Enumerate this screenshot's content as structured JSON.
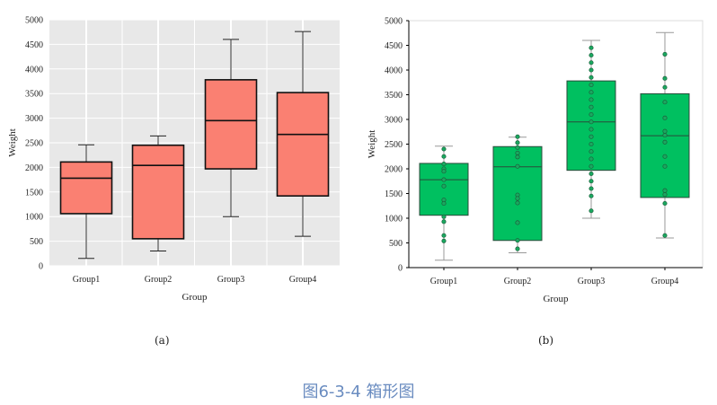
{
  "chart_data": [
    {
      "type": "box",
      "title": "",
      "xlabel": "Group",
      "ylabel": "Weight",
      "ylim": [
        0,
        5000
      ],
      "yticks": [
        0,
        500,
        1000,
        1500,
        2000,
        2500,
        3000,
        3500,
        4000,
        4500,
        5000
      ],
      "categories": [
        "Group1",
        "Group2",
        "Group3",
        "Group4"
      ],
      "boxes": [
        {
          "min": 150,
          "q1": 1060,
          "median": 1780,
          "q3": 2110,
          "max": 2460
        },
        {
          "min": 300,
          "q1": 550,
          "median": 2040,
          "q3": 2450,
          "max": 2640
        },
        {
          "min": 1000,
          "q1": 1970,
          "median": 2950,
          "q3": 3780,
          "max": 4600
        },
        {
          "min": 600,
          "q1": 1420,
          "median": 2670,
          "q3": 3520,
          "max": 4760
        }
      ],
      "grid": true,
      "fill": "#fa8072",
      "background": "#e8e8e8",
      "label": "(a)"
    },
    {
      "type": "box",
      "title": "",
      "xlabel": "Group",
      "ylabel": "Weight",
      "ylim": [
        0,
        5000
      ],
      "yticks": [
        0,
        500,
        1000,
        1500,
        2000,
        2500,
        3000,
        3500,
        4000,
        4500,
        5000
      ],
      "categories": [
        "Group1",
        "Group2",
        "Group3",
        "Group4"
      ],
      "boxes": [
        {
          "min": 150,
          "q1": 1060,
          "median": 1780,
          "q3": 2110,
          "max": 2460
        },
        {
          "min": 300,
          "q1": 550,
          "median": 2040,
          "q3": 2450,
          "max": 2640
        },
        {
          "min": 1000,
          "q1": 1970,
          "median": 2950,
          "q3": 3780,
          "max": 4600
        },
        {
          "min": 600,
          "q1": 1420,
          "median": 2670,
          "q3": 3520,
          "max": 4760
        }
      ],
      "points": [
        [
          2400,
          2250,
          2100,
          2000,
          1950,
          1780,
          1650,
          1370,
          1300,
          1030,
          930,
          650,
          540
        ],
        [
          2650,
          2530,
          2430,
          2320,
          2240,
          2050,
          1470,
          1400,
          1310,
          910,
          550,
          380
        ],
        [
          4450,
          4300,
          4150,
          4000,
          3850,
          3700,
          3550,
          3400,
          3250,
          3100,
          2950,
          2800,
          2650,
          2500,
          2350,
          2200,
          2050,
          1900,
          1750,
          1600,
          1450,
          1150
        ],
        [
          4320,
          3830,
          3650,
          3350,
          3030,
          2760,
          2680,
          2540,
          2250,
          2050,
          1560,
          1480,
          1300,
          650
        ]
      ],
      "grid": false,
      "fill": "#00c060",
      "background": "#ffffff",
      "label": "(b)"
    }
  ],
  "caption": "图6-3-4  箱形图"
}
